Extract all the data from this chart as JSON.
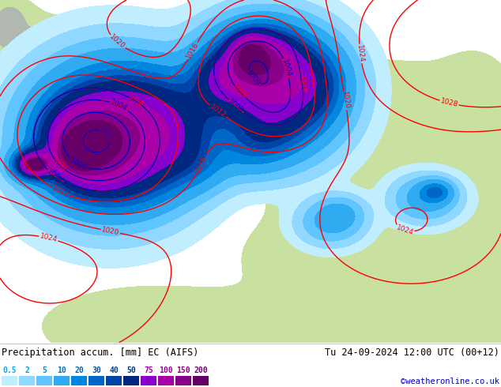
{
  "title_left": "Precipitation accum. [mm] EC (AIFS)",
  "title_right": "Tu 24-09-2024 12:00 UTC (00+12)",
  "credit": "©weatheronline.co.uk",
  "legend_values": [
    "0.5",
    "2",
    "5",
    "10",
    "20",
    "30",
    "40",
    "50",
    "75",
    "100",
    "150",
    "200"
  ],
  "legend_colors_display": [
    "#00ccff",
    "#00ccff",
    "#00ccff",
    "#0099ff",
    "#0066ee",
    "#0044cc",
    "#0033aa",
    "#002288",
    "#aa00aa",
    "#880088",
    "#660066",
    "#440044"
  ],
  "figsize": [
    6.34,
    4.9
  ],
  "dpi": 100,
  "ocean_color": "#d8e8f0",
  "land_color_europe": "#c8e0a0",
  "land_color_north": "#d0d8c0",
  "precip_levels": [
    0.5,
    2,
    5,
    10,
    20,
    30,
    40,
    50,
    75,
    100,
    150,
    200,
    500
  ],
  "precip_colors": [
    "#c0eeff",
    "#90d8ff",
    "#60c4ff",
    "#30aaf0",
    "#0088e0",
    "#0066c8",
    "#0044a8",
    "#002880",
    "#8800cc",
    "#aa00aa",
    "#880088",
    "#660066"
  ],
  "pressure_levels_red": [
    992,
    996,
    1004,
    1008,
    1012,
    1016,
    1020,
    1024,
    1028
  ],
  "pressure_levels_blue": [
    996,
    1000,
    1004,
    1008
  ],
  "bottom_bar_color": "#f0f0f0",
  "text_color": "#000000",
  "credit_color": "#0000cc"
}
